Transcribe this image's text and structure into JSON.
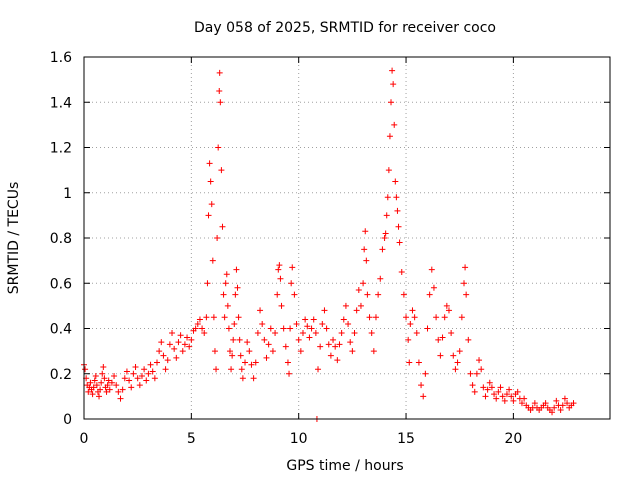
{
  "chart_data": {
    "type": "scatter",
    "title": "Day 058 of 2025, SRMTID for receiver coco",
    "xlabel": "GPS time / hours",
    "ylabel": "SRMTID / TECUs",
    "xlim": [
      0,
      24.5
    ],
    "ylim": [
      0,
      1.6
    ],
    "grid": true,
    "marker": "+",
    "color": "#ff0000",
    "x_ticks": [
      0,
      5,
      10,
      15,
      20
    ],
    "x_tick_labels": [
      "0",
      "5",
      "10",
      "15",
      "20"
    ],
    "y_ticks": [
      0,
      0.2,
      0.4,
      0.6,
      0.8,
      1.0,
      1.2,
      1.4,
      1.6
    ],
    "y_tick_labels": [
      "0",
      "0.2",
      "0.4",
      "0.6",
      "0.8",
      "1",
      "1.2",
      "1.4",
      "1.6"
    ],
    "series": [
      {
        "name": "SRMTID",
        "points": [
          [
            0.0,
            0.24
          ],
          [
            0.05,
            0.22
          ],
          [
            0.1,
            0.18
          ],
          [
            0.15,
            0.15
          ],
          [
            0.2,
            0.12
          ],
          [
            0.25,
            0.14
          ],
          [
            0.3,
            0.16
          ],
          [
            0.35,
            0.13
          ],
          [
            0.4,
            0.11
          ],
          [
            0.45,
            0.14
          ],
          [
            0.5,
            0.17
          ],
          [
            0.55,
            0.19
          ],
          [
            0.6,
            0.15
          ],
          [
            0.65,
            0.12
          ],
          [
            0.7,
            0.1
          ],
          [
            0.75,
            0.13
          ],
          [
            0.8,
            0.16
          ],
          [
            0.85,
            0.2
          ],
          [
            0.9,
            0.23
          ],
          [
            0.95,
            0.18
          ],
          [
            1.0,
            0.14
          ],
          [
            1.05,
            0.12
          ],
          [
            1.1,
            0.15
          ],
          [
            1.15,
            0.17
          ],
          [
            1.2,
            0.13
          ],
          [
            1.3,
            0.16
          ],
          [
            1.4,
            0.19
          ],
          [
            1.5,
            0.15
          ],
          [
            1.6,
            0.12
          ],
          [
            1.7,
            0.09
          ],
          [
            1.8,
            0.13
          ],
          [
            1.9,
            0.18
          ],
          [
            2.0,
            0.21
          ],
          [
            2.1,
            0.17
          ],
          [
            2.2,
            0.14
          ],
          [
            2.3,
            0.2
          ],
          [
            2.4,
            0.23
          ],
          [
            2.5,
            0.18
          ],
          [
            2.6,
            0.15
          ],
          [
            2.7,
            0.19
          ],
          [
            2.8,
            0.22
          ],
          [
            2.9,
            0.17
          ],
          [
            3.0,
            0.2
          ],
          [
            3.1,
            0.24
          ],
          [
            3.2,
            0.21
          ],
          [
            3.3,
            0.18
          ],
          [
            3.4,
            0.25
          ],
          [
            3.5,
            0.3
          ],
          [
            3.6,
            0.34
          ],
          [
            3.7,
            0.28
          ],
          [
            3.8,
            0.22
          ],
          [
            3.9,
            0.26
          ],
          [
            4.0,
            0.33
          ],
          [
            4.1,
            0.38
          ],
          [
            4.2,
            0.31
          ],
          [
            4.3,
            0.27
          ],
          [
            4.4,
            0.34
          ],
          [
            4.5,
            0.37
          ],
          [
            4.6,
            0.3
          ],
          [
            4.7,
            0.33
          ],
          [
            4.8,
            0.36
          ],
          [
            4.9,
            0.32
          ],
          [
            5.0,
            0.35
          ],
          [
            5.1,
            0.39
          ],
          [
            5.2,
            0.4
          ],
          [
            5.3,
            0.42
          ],
          [
            5.4,
            0.44
          ],
          [
            5.5,
            0.4
          ],
          [
            5.6,
            0.38
          ],
          [
            5.7,
            0.45
          ],
          [
            5.75,
            0.6
          ],
          [
            5.8,
            0.9
          ],
          [
            5.85,
            1.13
          ],
          [
            5.9,
            1.05
          ],
          [
            5.95,
            0.95
          ],
          [
            6.0,
            0.7
          ],
          [
            6.05,
            0.45
          ],
          [
            6.1,
            0.3
          ],
          [
            6.15,
            0.22
          ],
          [
            6.2,
            0.8
          ],
          [
            6.25,
            1.2
          ],
          [
            6.3,
            1.45
          ],
          [
            6.32,
            1.53
          ],
          [
            6.35,
            1.4
          ],
          [
            6.4,
            1.1
          ],
          [
            6.45,
            0.85
          ],
          [
            6.5,
            0.55
          ],
          [
            6.55,
            0.45
          ],
          [
            6.6,
            0.6
          ],
          [
            6.65,
            0.64
          ],
          [
            6.7,
            0.5
          ],
          [
            6.75,
            0.4
          ],
          [
            6.8,
            0.3
          ],
          [
            6.85,
            0.22
          ],
          [
            6.9,
            0.28
          ],
          [
            6.95,
            0.35
          ],
          [
            7.0,
            0.42
          ],
          [
            7.05,
            0.55
          ],
          [
            7.1,
            0.66
          ],
          [
            7.15,
            0.58
          ],
          [
            7.2,
            0.45
          ],
          [
            7.25,
            0.35
          ],
          [
            7.3,
            0.28
          ],
          [
            7.35,
            0.22
          ],
          [
            7.4,
            0.18
          ],
          [
            7.5,
            0.25
          ],
          [
            7.6,
            0.34
          ],
          [
            7.7,
            0.3
          ],
          [
            7.8,
            0.24
          ],
          [
            7.9,
            0.18
          ],
          [
            8.0,
            0.25
          ],
          [
            8.1,
            0.38
          ],
          [
            8.2,
            0.48
          ],
          [
            8.3,
            0.42
          ],
          [
            8.4,
            0.35
          ],
          [
            8.5,
            0.27
          ],
          [
            8.6,
            0.33
          ],
          [
            8.7,
            0.4
          ],
          [
            8.8,
            0.3
          ],
          [
            8.9,
            0.38
          ],
          [
            9.0,
            0.55
          ],
          [
            9.05,
            0.66
          ],
          [
            9.1,
            0.68
          ],
          [
            9.15,
            0.62
          ],
          [
            9.2,
            0.5
          ],
          [
            9.3,
            0.4
          ],
          [
            9.4,
            0.32
          ],
          [
            9.5,
            0.25
          ],
          [
            9.55,
            0.2
          ],
          [
            9.6,
            0.4
          ],
          [
            9.65,
            0.6
          ],
          [
            9.7,
            0.67
          ],
          [
            9.8,
            0.55
          ],
          [
            9.9,
            0.42
          ],
          [
            10.0,
            0.35
          ],
          [
            10.1,
            0.3
          ],
          [
            10.2,
            0.38
          ],
          [
            10.3,
            0.44
          ],
          [
            10.4,
            0.41
          ],
          [
            10.5,
            0.36
          ],
          [
            10.6,
            0.4
          ],
          [
            10.7,
            0.44
          ],
          [
            10.8,
            0.38
          ],
          [
            10.85,
            0.0
          ],
          [
            10.9,
            0.22
          ],
          [
            11.0,
            0.32
          ],
          [
            11.1,
            0.42
          ],
          [
            11.2,
            0.48
          ],
          [
            11.3,
            0.4
          ],
          [
            11.4,
            0.33
          ],
          [
            11.5,
            0.28
          ],
          [
            11.6,
            0.35
          ],
          [
            11.7,
            0.32
          ],
          [
            11.8,
            0.26
          ],
          [
            11.9,
            0.33
          ],
          [
            12.0,
            0.38
          ],
          [
            12.1,
            0.44
          ],
          [
            12.2,
            0.5
          ],
          [
            12.3,
            0.42
          ],
          [
            12.4,
            0.34
          ],
          [
            12.5,
            0.3
          ],
          [
            12.6,
            0.38
          ],
          [
            12.7,
            0.48
          ],
          [
            12.8,
            0.57
          ],
          [
            12.9,
            0.5
          ],
          [
            13.0,
            0.6
          ],
          [
            13.05,
            0.75
          ],
          [
            13.1,
            0.83
          ],
          [
            13.15,
            0.7
          ],
          [
            13.2,
            0.55
          ],
          [
            13.3,
            0.45
          ],
          [
            13.4,
            0.38
          ],
          [
            13.5,
            0.3
          ],
          [
            13.6,
            0.45
          ],
          [
            13.7,
            0.55
          ],
          [
            13.8,
            0.62
          ],
          [
            13.9,
            0.75
          ],
          [
            14.0,
            0.8
          ],
          [
            14.05,
            0.82
          ],
          [
            14.1,
            0.9
          ],
          [
            14.15,
            0.98
          ],
          [
            14.2,
            1.1
          ],
          [
            14.25,
            1.25
          ],
          [
            14.3,
            1.4
          ],
          [
            14.35,
            1.54
          ],
          [
            14.4,
            1.48
          ],
          [
            14.45,
            1.3
          ],
          [
            14.5,
            1.05
          ],
          [
            14.55,
            0.98
          ],
          [
            14.6,
            0.92
          ],
          [
            14.65,
            0.85
          ],
          [
            14.7,
            0.78
          ],
          [
            14.8,
            0.65
          ],
          [
            14.9,
            0.55
          ],
          [
            15.0,
            0.45
          ],
          [
            15.1,
            0.35
          ],
          [
            15.15,
            0.25
          ],
          [
            15.2,
            0.42
          ],
          [
            15.3,
            0.48
          ],
          [
            15.4,
            0.45
          ],
          [
            15.5,
            0.38
          ],
          [
            15.6,
            0.25
          ],
          [
            15.7,
            0.15
          ],
          [
            15.8,
            0.1
          ],
          [
            15.9,
            0.2
          ],
          [
            16.0,
            0.4
          ],
          [
            16.1,
            0.55
          ],
          [
            16.2,
            0.66
          ],
          [
            16.3,
            0.58
          ],
          [
            16.4,
            0.45
          ],
          [
            16.5,
            0.35
          ],
          [
            16.6,
            0.28
          ],
          [
            16.7,
            0.36
          ],
          [
            16.8,
            0.45
          ],
          [
            16.9,
            0.5
          ],
          [
            17.0,
            0.48
          ],
          [
            17.1,
            0.38
          ],
          [
            17.2,
            0.28
          ],
          [
            17.3,
            0.22
          ],
          [
            17.4,
            0.25
          ],
          [
            17.5,
            0.3
          ],
          [
            17.6,
            0.45
          ],
          [
            17.7,
            0.6
          ],
          [
            17.75,
            0.67
          ],
          [
            17.8,
            0.55
          ],
          [
            17.9,
            0.35
          ],
          [
            18.0,
            0.2
          ],
          [
            18.1,
            0.15
          ],
          [
            18.2,
            0.12
          ],
          [
            18.3,
            0.2
          ],
          [
            18.4,
            0.26
          ],
          [
            18.5,
            0.22
          ],
          [
            18.6,
            0.14
          ],
          [
            18.7,
            0.1
          ],
          [
            18.8,
            0.13
          ],
          [
            18.9,
            0.16
          ],
          [
            19.0,
            0.14
          ],
          [
            19.1,
            0.11
          ],
          [
            19.2,
            0.09
          ],
          [
            19.3,
            0.12
          ],
          [
            19.4,
            0.14
          ],
          [
            19.5,
            0.1
          ],
          [
            19.6,
            0.08
          ],
          [
            19.7,
            0.11
          ],
          [
            19.8,
            0.13
          ],
          [
            19.9,
            0.1
          ],
          [
            20.0,
            0.08
          ],
          [
            20.1,
            0.11
          ],
          [
            20.2,
            0.12
          ],
          [
            20.3,
            0.09
          ],
          [
            20.4,
            0.07
          ],
          [
            20.5,
            0.09
          ],
          [
            20.6,
            0.06
          ],
          [
            20.7,
            0.05
          ],
          [
            20.8,
            0.04
          ],
          [
            20.9,
            0.05
          ],
          [
            21.0,
            0.07
          ],
          [
            21.1,
            0.05
          ],
          [
            21.2,
            0.04
          ],
          [
            21.3,
            0.05
          ],
          [
            21.4,
            0.06
          ],
          [
            21.5,
            0.07
          ],
          [
            21.6,
            0.05
          ],
          [
            21.7,
            0.04
          ],
          [
            21.8,
            0.03
          ],
          [
            21.9,
            0.05
          ],
          [
            22.0,
            0.08
          ],
          [
            22.1,
            0.06
          ],
          [
            22.2,
            0.04
          ],
          [
            22.3,
            0.06
          ],
          [
            22.4,
            0.09
          ],
          [
            22.5,
            0.07
          ],
          [
            22.6,
            0.05
          ],
          [
            22.7,
            0.06
          ],
          [
            22.8,
            0.07
          ]
        ]
      }
    ]
  }
}
